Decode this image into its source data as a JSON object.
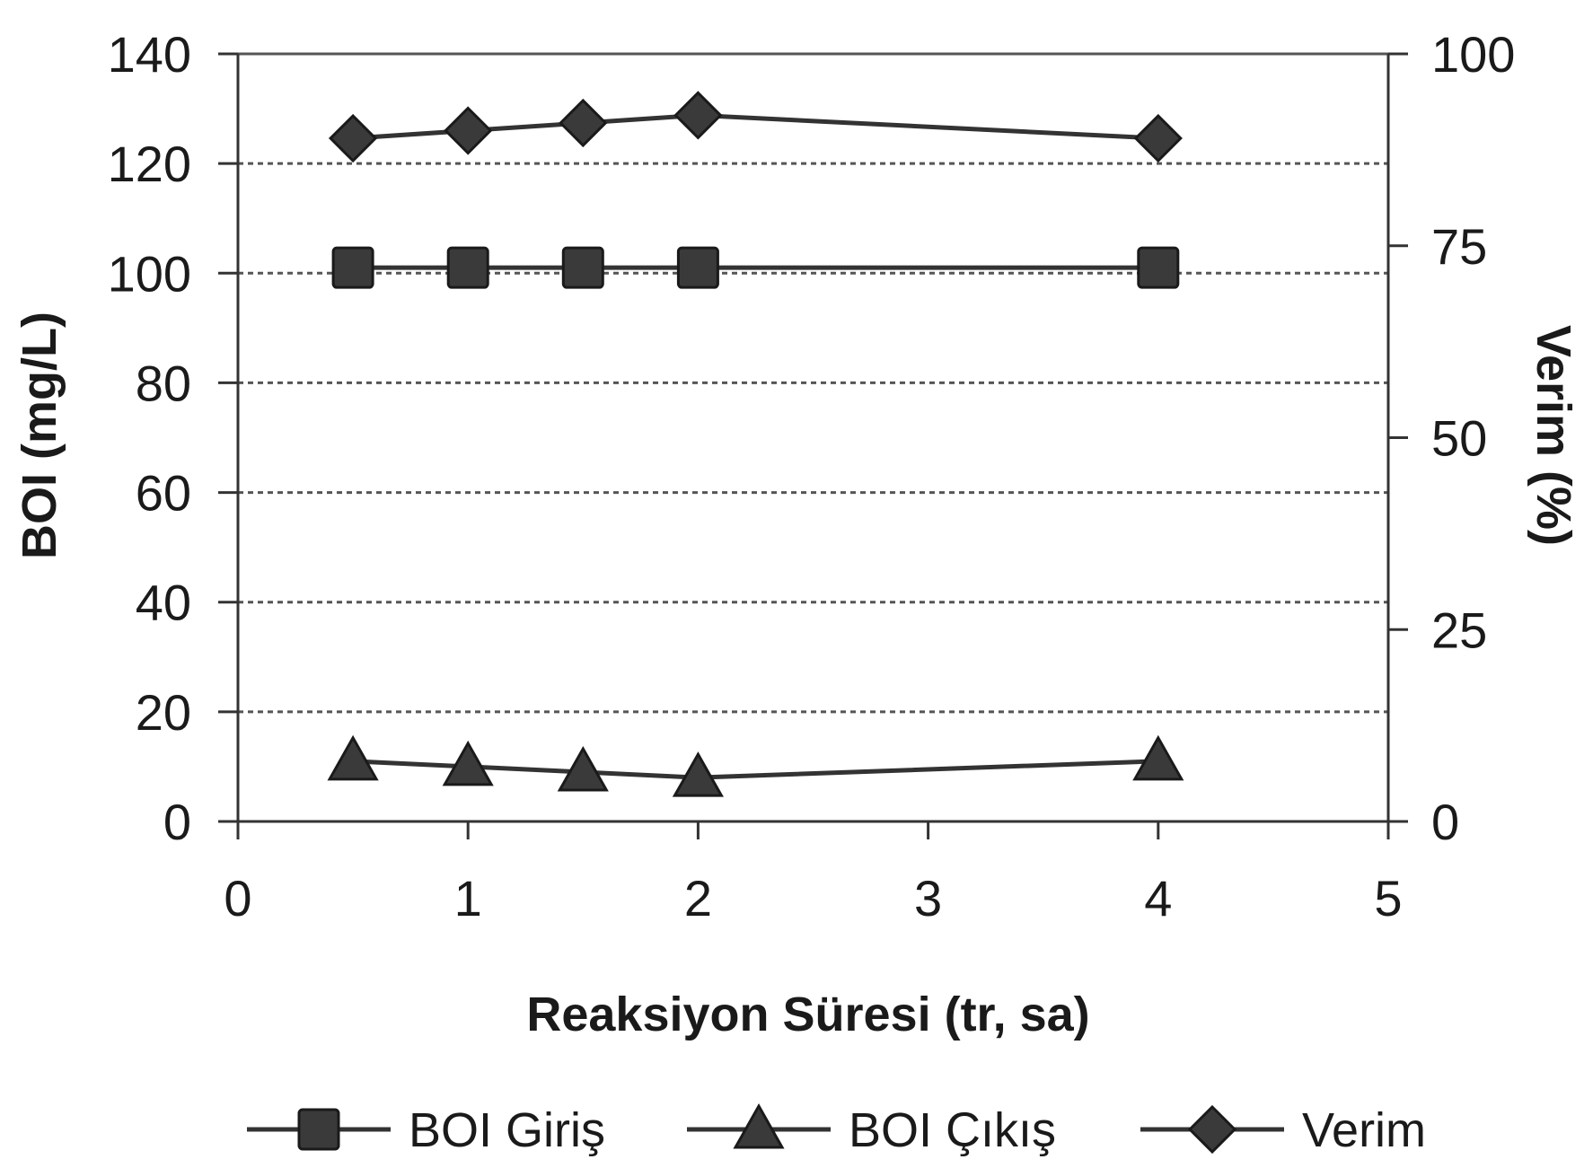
{
  "chart_data": {
    "type": "line",
    "title": "",
    "xlabel": "Reaksiyon Süresi (tr, sa)",
    "ylabel": "BOI (mg/L)",
    "y2label": "Verim (%)",
    "xlim": [
      0,
      5
    ],
    "ylim": [
      0,
      140
    ],
    "y2lim": [
      0,
      100
    ],
    "x_ticks": [
      "0",
      "1",
      "2",
      "3",
      "4",
      "5"
    ],
    "y_ticks": [
      "0",
      "20",
      "40",
      "60",
      "80",
      "100",
      "120",
      "140"
    ],
    "y2_ticks": [
      "0",
      "25",
      "50",
      "75",
      "100"
    ],
    "grid": "horizontal-dashed",
    "legend_position": "bottom",
    "series": [
      {
        "name": "BOI Giriş",
        "axis": "left",
        "marker": "square",
        "x": [
          0.5,
          1,
          1.5,
          2,
          4
        ],
        "values": [
          101,
          101,
          101,
          101,
          101
        ]
      },
      {
        "name": "BOI Çıkış",
        "axis": "left",
        "marker": "triangle",
        "x": [
          0.5,
          1,
          1.5,
          2,
          4
        ],
        "values": [
          11,
          10,
          9,
          8,
          11
        ]
      },
      {
        "name": "Verim",
        "axis": "right",
        "marker": "diamond",
        "x": [
          0.5,
          1,
          1.5,
          2,
          4
        ],
        "values": [
          89,
          90,
          91,
          92,
          89
        ]
      }
    ],
    "colors": {
      "line": "#333333",
      "marker": "#3a3a3a",
      "grid": "#555555"
    }
  }
}
